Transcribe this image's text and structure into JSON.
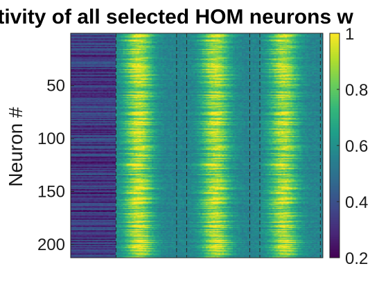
{
  "chart_data": {
    "type": "heatmap",
    "title": "Activity of all selected HOM neurons w",
    "xlabel": "",
    "ylabel": "Neuron #",
    "n_rows": 212,
    "n_cols": 140,
    "row_range": [
      1,
      212
    ],
    "y_ticks": [
      {
        "value": 50,
        "label": "50"
      },
      {
        "value": 100,
        "label": "100"
      },
      {
        "value": 150,
        "label": "150"
      },
      {
        "value": 200,
        "label": "200"
      }
    ],
    "x_ticklabels_shown": false,
    "vertical_markers_dashed": [
      0.18,
      0.42,
      0.46,
      0.71,
      0.75,
      0.99
    ],
    "stimulus_bands": [
      {
        "center": 0.27,
        "peak": 0.98
      },
      {
        "center": 0.575,
        "peak": 0.96
      },
      {
        "center": 0.845,
        "peak": 0.95
      }
    ],
    "colorbar": {
      "colormap": "viridis",
      "clim": [
        0.2,
        1
      ],
      "ticks": [
        {
          "value": 0.2,
          "label": "0.2"
        },
        {
          "value": 0.4,
          "label": "0.4"
        },
        {
          "value": 0.6,
          "label": "0.6"
        },
        {
          "value": 0.8,
          "label": "0.8"
        },
        {
          "value": 1,
          "label": "1"
        }
      ]
    },
    "colors": {
      "viridis_stops": [
        "#440154",
        "#482878",
        "#3e4989",
        "#31688e",
        "#26828e",
        "#1f9e89",
        "#35b779",
        "#6ece58",
        "#b5de2b",
        "#fde725"
      ]
    }
  }
}
